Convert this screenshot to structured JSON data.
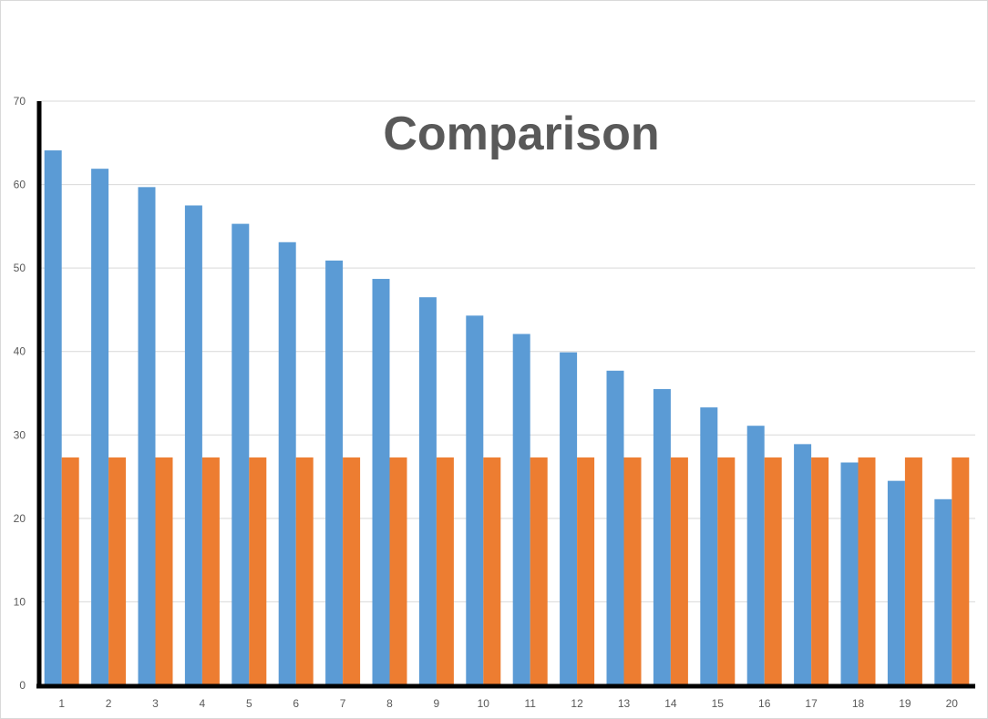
{
  "chart_data": {
    "type": "bar",
    "title": "Comparison",
    "xlabel": "",
    "ylabel": "",
    "categories": [
      "1",
      "2",
      "3",
      "4",
      "5",
      "6",
      "7",
      "8",
      "9",
      "10",
      "11",
      "12",
      "13",
      "14",
      "15",
      "16",
      "17",
      "18",
      "19",
      "20"
    ],
    "ylim": [
      0,
      70
    ],
    "yticks": [
      "0",
      "10",
      "20",
      "30",
      "40",
      "50",
      "60",
      "70"
    ],
    "grid": true,
    "legend": "none",
    "series": [
      {
        "values": [
          64.1,
          61.9,
          59.7,
          57.5,
          55.3,
          53.1,
          50.9,
          48.7,
          46.5,
          44.3,
          42.1,
          39.9,
          37.7,
          35.5,
          33.3,
          31.1,
          28.9,
          26.7,
          24.5,
          22.3
        ],
        "color": "#5b9bd5"
      },
      {
        "values": [
          27.3,
          27.3,
          27.3,
          27.3,
          27.3,
          27.3,
          27.3,
          27.3,
          27.3,
          27.3,
          27.3,
          27.3,
          27.3,
          27.3,
          27.3,
          27.3,
          27.3,
          27.3,
          27.3,
          27.3
        ],
        "color": "#ed7d31"
      }
    ],
    "colors": {
      "grid": "#d9d9d9",
      "axis": "#000000",
      "text": "#595959"
    }
  }
}
